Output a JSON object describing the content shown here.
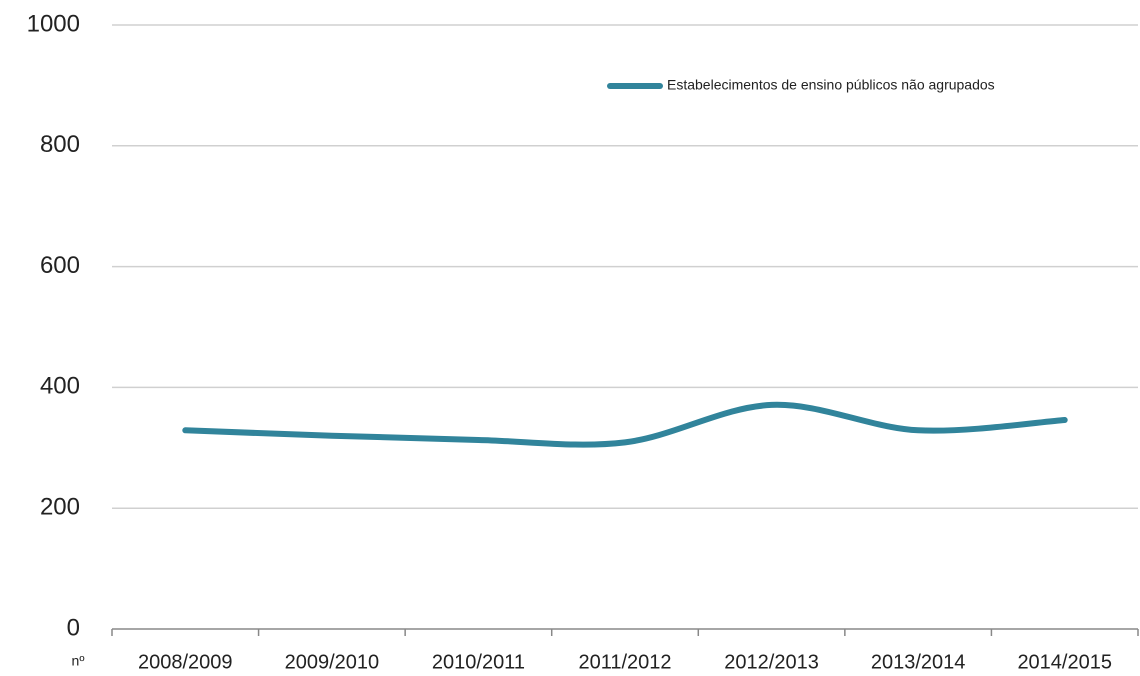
{
  "chart_data": {
    "type": "line",
    "y_label": "nº",
    "categories": [
      "2008/2009",
      "2009/2010",
      "2010/2011",
      "2011/2012",
      "2012/2013",
      "2013/2014",
      "2014/2015"
    ],
    "series": [
      {
        "name": "Estabelecimentos de ensino públicos não agrupados",
        "color": "#31849b",
        "values": [
          329,
          320,
          313,
          309,
          371,
          329,
          346
        ]
      }
    ],
    "ylim": [
      0,
      1000
    ],
    "yticks": [
      0,
      200,
      400,
      600,
      800,
      1000
    ],
    "grid": true,
    "smooth": true,
    "legend": "top-right"
  }
}
